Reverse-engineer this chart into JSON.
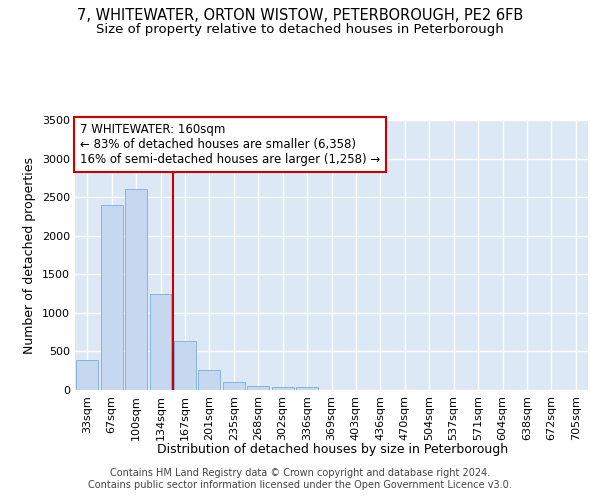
{
  "title_line1": "7, WHITEWATER, ORTON WISTOW, PETERBOROUGH, PE2 6FB",
  "title_line2": "Size of property relative to detached houses in Peterborough",
  "xlabel": "Distribution of detached houses by size in Peterborough",
  "ylabel": "Number of detached properties",
  "categories": [
    "33sqm",
    "67sqm",
    "100sqm",
    "134sqm",
    "167sqm",
    "201sqm",
    "235sqm",
    "268sqm",
    "302sqm",
    "336sqm",
    "369sqm",
    "403sqm",
    "436sqm",
    "470sqm",
    "504sqm",
    "537sqm",
    "571sqm",
    "604sqm",
    "638sqm",
    "672sqm",
    "705sqm"
  ],
  "values": [
    390,
    2400,
    2600,
    1250,
    640,
    260,
    100,
    55,
    45,
    40,
    0,
    0,
    0,
    0,
    0,
    0,
    0,
    0,
    0,
    0,
    0
  ],
  "bar_color": "#c5d8ef",
  "bar_edge_color": "#7aadd4",
  "vline_color": "#cc0000",
  "vline_index": 4,
  "annotation_text": "7 WHITEWATER: 160sqm\n← 83% of detached houses are smaller (6,358)\n16% of semi-detached houses are larger (1,258) →",
  "annotation_box_facecolor": "#ffffff",
  "annotation_box_edgecolor": "#cc0000",
  "ylim": [
    0,
    3500
  ],
  "yticks": [
    0,
    500,
    1000,
    1500,
    2000,
    2500,
    3000,
    3500
  ],
  "background_color": "#dce8f5",
  "grid_color": "#ffffff",
  "footer_line1": "Contains HM Land Registry data © Crown copyright and database right 2024.",
  "footer_line2": "Contains public sector information licensed under the Open Government Licence v3.0.",
  "title_fontsize": 10.5,
  "subtitle_fontsize": 9.5,
  "axis_label_fontsize": 9,
  "tick_fontsize": 8,
  "annot_fontsize": 8.5
}
